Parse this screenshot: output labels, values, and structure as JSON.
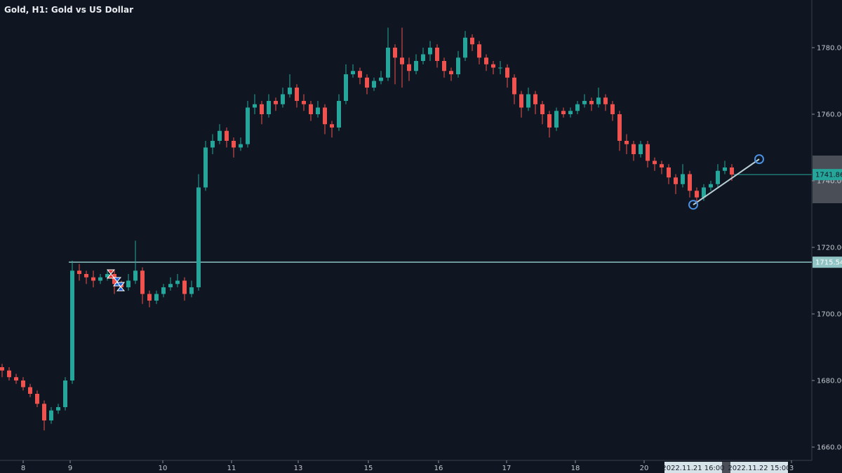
{
  "header": {
    "title": "Gold, H1: Gold vs US Dollar"
  },
  "colors": {
    "background": "#0f1621",
    "up": "#26a69a",
    "down": "#ef5350",
    "hline": "#8fc3c4",
    "trendline": "#b8cfd6",
    "handle": "#4a90e2",
    "axis_highlight": "#d6e3e8"
  },
  "chart_data": {
    "type": "candlestick",
    "title": "Gold, H1: Gold vs US Dollar",
    "ylim": [
      1655,
      1790
    ],
    "y_ticks": [
      "1660.00",
      "1680.00",
      "1700.00",
      "1720.00",
      "1740.00",
      "1760.00",
      "1780.00"
    ],
    "y_tick_values": [
      1660,
      1680,
      1700,
      1720,
      1740,
      1760,
      1780
    ],
    "x_ticks": [
      "8",
      "9",
      "10",
      "11",
      "13",
      "15",
      "16",
      "17",
      "18",
      "20",
      "3"
    ],
    "grid": false,
    "candles": [
      [
        1684,
        1685,
        1681,
        1683
      ],
      [
        1683,
        1684,
        1680,
        1681
      ],
      [
        1681,
        1682,
        1679,
        1680
      ],
      [
        1680,
        1681,
        1677,
        1678
      ],
      [
        1678,
        1679,
        1675,
        1676
      ],
      [
        1676,
        1677,
        1672,
        1673
      ],
      [
        1673,
        1674,
        1665,
        1668
      ],
      [
        1668,
        1672,
        1667,
        1671
      ],
      [
        1671,
        1673,
        1670,
        1672
      ],
      [
        1672,
        1681,
        1671,
        1680
      ],
      [
        1680,
        1716,
        1679,
        1713
      ],
      [
        1713,
        1715,
        1710,
        1712
      ],
      [
        1712,
        1713,
        1709,
        1711
      ],
      [
        1711,
        1713,
        1708,
        1710
      ],
      [
        1710,
        1712,
        1709,
        1711
      ],
      [
        1711,
        1713,
        1710,
        1712
      ],
      [
        1712,
        1713,
        1706,
        1709
      ],
      [
        1709,
        1710,
        1707,
        1708
      ],
      [
        1708,
        1712,
        1707,
        1710
      ],
      [
        1710,
        1722,
        1709,
        1713
      ],
      [
        1713,
        1714,
        1703,
        1706
      ],
      [
        1706,
        1707,
        1702,
        1704
      ],
      [
        1704,
        1707,
        1703,
        1706
      ],
      [
        1706,
        1709,
        1705,
        1708
      ],
      [
        1708,
        1711,
        1707,
        1709
      ],
      [
        1709,
        1712,
        1708,
        1710
      ],
      [
        1710,
        1711,
        1704,
        1706
      ],
      [
        1706,
        1710,
        1705,
        1708
      ],
      [
        1708,
        1742,
        1707,
        1738
      ],
      [
        1738,
        1752,
        1737,
        1750
      ],
      [
        1750,
        1754,
        1748,
        1752
      ],
      [
        1752,
        1757,
        1751,
        1755
      ],
      [
        1755,
        1756,
        1750,
        1752
      ],
      [
        1752,
        1753,
        1747,
        1750
      ],
      [
        1750,
        1753,
        1749,
        1751
      ],
      [
        1751,
        1764,
        1750,
        1762
      ],
      [
        1762,
        1766,
        1760,
        1763
      ],
      [
        1763,
        1764,
        1757,
        1760
      ],
      [
        1760,
        1766,
        1759,
        1764
      ],
      [
        1764,
        1765,
        1761,
        1763
      ],
      [
        1763,
        1768,
        1762,
        1766
      ],
      [
        1766,
        1772,
        1765,
        1768
      ],
      [
        1768,
        1769,
        1762,
        1764
      ],
      [
        1764,
        1766,
        1761,
        1763
      ],
      [
        1763,
        1764,
        1758,
        1760
      ],
      [
        1760,
        1764,
        1759,
        1762
      ],
      [
        1762,
        1763,
        1754,
        1757
      ],
      [
        1757,
        1758,
        1753,
        1756
      ],
      [
        1756,
        1766,
        1755,
        1764
      ],
      [
        1764,
        1775,
        1763,
        1772
      ],
      [
        1772,
        1775,
        1771,
        1773
      ],
      [
        1773,
        1774,
        1769,
        1771
      ],
      [
        1771,
        1772,
        1766,
        1768
      ],
      [
        1768,
        1771,
        1767,
        1770
      ],
      [
        1770,
        1773,
        1769,
        1771
      ],
      [
        1771,
        1786,
        1770,
        1780
      ],
      [
        1780,
        1781,
        1769,
        1777
      ],
      [
        1777,
        1786,
        1768,
        1775
      ],
      [
        1775,
        1777,
        1770,
        1773
      ],
      [
        1773,
        1778,
        1772,
        1776
      ],
      [
        1776,
        1780,
        1775,
        1778
      ],
      [
        1778,
        1782,
        1776,
        1780
      ],
      [
        1780,
        1781,
        1774,
        1776
      ],
      [
        1776,
        1777,
        1771,
        1773
      ],
      [
        1773,
        1774,
        1770,
        1772
      ],
      [
        1772,
        1779,
        1771,
        1777
      ],
      [
        1777,
        1785,
        1776,
        1783
      ],
      [
        1783,
        1784,
        1779,
        1781
      ],
      [
        1781,
        1782,
        1775,
        1777
      ],
      [
        1777,
        1778,
        1773,
        1775
      ],
      [
        1775,
        1776,
        1772,
        1774
      ],
      [
        1774,
        1776,
        1772,
        1774
      ],
      [
        1774,
        1775,
        1768,
        1771
      ],
      [
        1771,
        1772,
        1763,
        1766
      ],
      [
        1766,
        1767,
        1759,
        1762
      ],
      [
        1762,
        1768,
        1761,
        1766
      ],
      [
        1766,
        1767,
        1760,
        1763
      ],
      [
        1763,
        1764,
        1757,
        1760
      ],
      [
        1760,
        1761,
        1753,
        1756
      ],
      [
        1756,
        1762,
        1755,
        1761
      ],
      [
        1761,
        1762,
        1759,
        1760
      ],
      [
        1760,
        1762,
        1759,
        1761
      ],
      [
        1761,
        1764,
        1760,
        1763
      ],
      [
        1763,
        1766,
        1762,
        1764
      ],
      [
        1764,
        1765,
        1761,
        1763
      ],
      [
        1763,
        1768,
        1762,
        1765
      ],
      [
        1765,
        1766,
        1761,
        1763
      ],
      [
        1763,
        1764,
        1758,
        1760
      ],
      [
        1760,
        1761,
        1749,
        1752
      ],
      [
        1752,
        1754,
        1748,
        1751
      ],
      [
        1751,
        1752,
        1746,
        1748
      ],
      [
        1748,
        1752,
        1747,
        1751
      ],
      [
        1751,
        1752,
        1744,
        1746
      ],
      [
        1746,
        1747,
        1743,
        1745
      ],
      [
        1745,
        1746,
        1742,
        1744
      ],
      [
        1744,
        1745,
        1739,
        1741
      ],
      [
        1741,
        1742,
        1736,
        1739
      ],
      [
        1739,
        1745,
        1738,
        1742
      ],
      [
        1742,
        1743,
        1735,
        1737
      ],
      [
        1737,
        1738,
        1733,
        1735
      ],
      [
        1735,
        1739,
        1734,
        1738
      ],
      [
        1738,
        1740,
        1737,
        1739
      ],
      [
        1739,
        1745,
        1738,
        1743
      ],
      [
        1743,
        1746,
        1742,
        1744
      ],
      [
        1744,
        1745,
        1740,
        1741.86
      ]
    ],
    "price_lines": [
      {
        "label": "1741.86",
        "value": 1741.86,
        "color": "#26a69a"
      },
      {
        "label": "1715.54",
        "value": 1715.54,
        "color": "#8fc3c4"
      }
    ],
    "trendline": {
      "start": {
        "time": "2022.11.21 16:00",
        "price": 1732.8
      },
      "end": {
        "time": "2022.11.22 15:00",
        "price": 1746.5
      }
    },
    "trade_markers": [
      "sell-marker",
      "buy-marker",
      "buy-marker"
    ]
  }
}
